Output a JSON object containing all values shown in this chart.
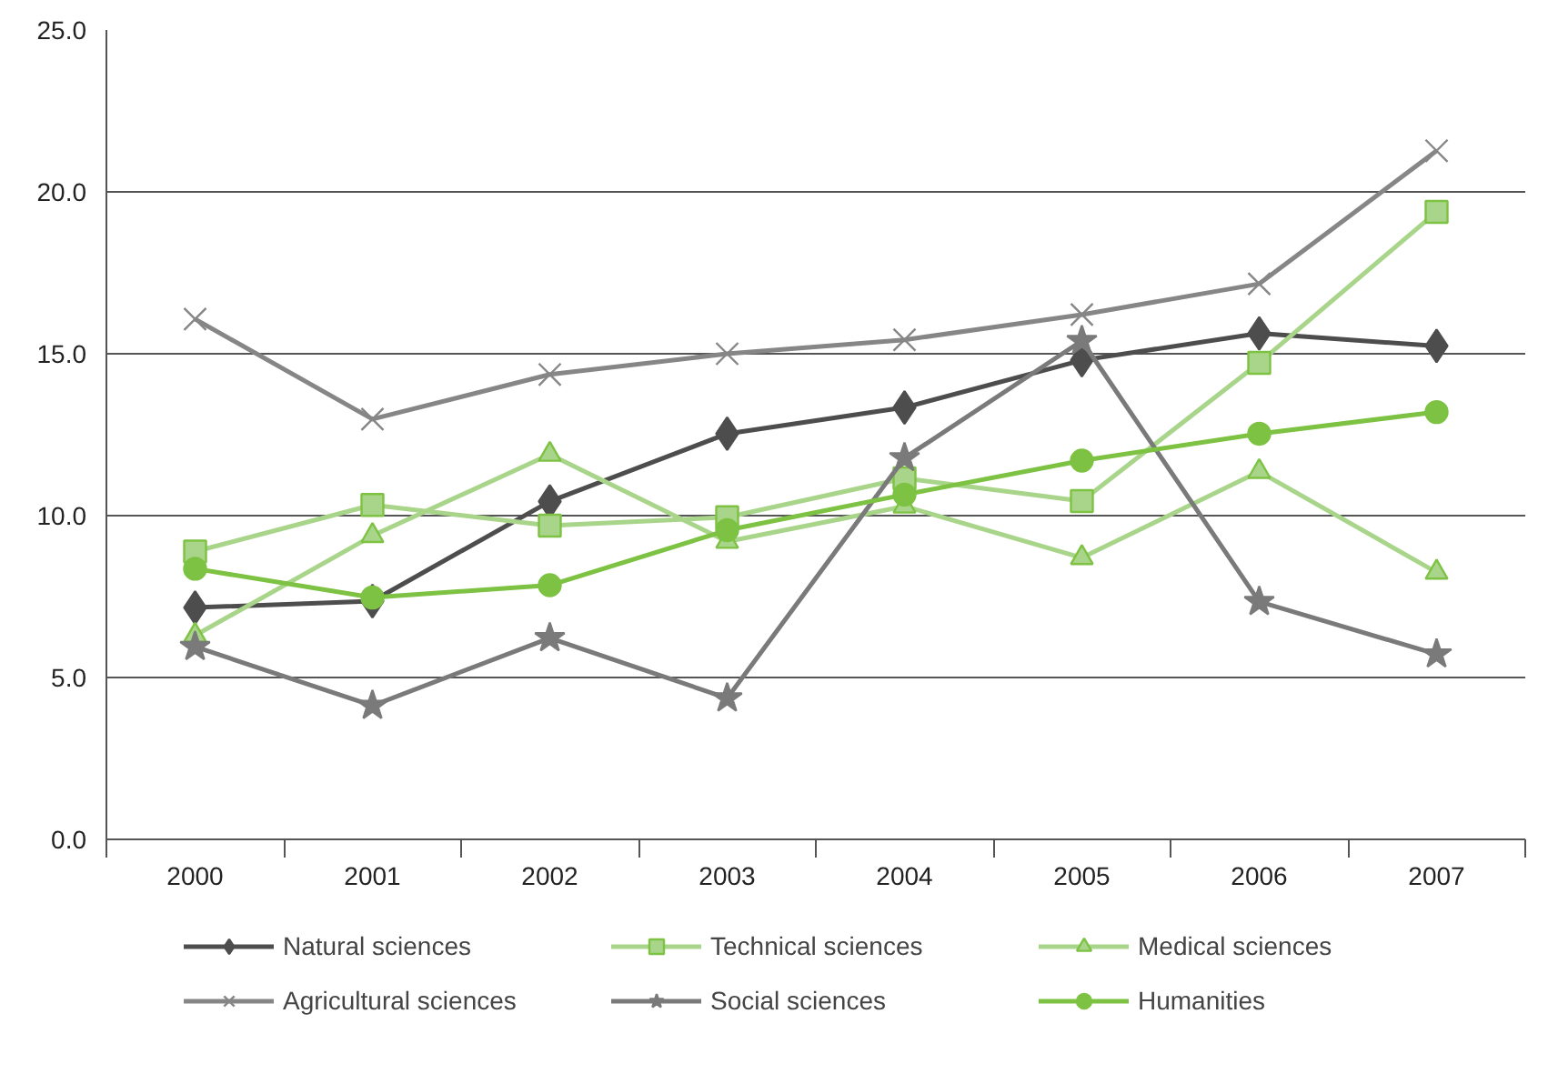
{
  "chart_data": {
    "type": "line",
    "categories": [
      "2000",
      "2001",
      "2002",
      "2003",
      "2004",
      "2005",
      "2006",
      "2007"
    ],
    "ylim": [
      0,
      25
    ],
    "yticks": [
      {
        "value": 0,
        "label": "0.0"
      },
      {
        "value": 5,
        "label": "5.0"
      },
      {
        "value": 10,
        "label": "10.0"
      },
      {
        "value": 15,
        "label": "15.0"
      },
      {
        "value": 20,
        "label": "20.0"
      },
      {
        "value": 25,
        "label": "25.0"
      }
    ],
    "grid": "y",
    "legend": "bottom",
    "line_style": "solid",
    "series": [
      {
        "name": "Natural sciences",
        "color": "#4d4d4d",
        "marker": "diamond",
        "values": [
          7.16,
          7.36,
          10.44,
          12.53,
          13.34,
          14.8,
          15.63,
          15.24
        ]
      },
      {
        "name": "Technical sciences",
        "color": "#a9d58a",
        "marker": "square",
        "values": [
          8.89,
          10.33,
          9.69,
          9.95,
          11.15,
          10.45,
          14.72,
          19.38
        ]
      },
      {
        "name": "Medical sciences",
        "color": "#a9d58a",
        "marker": "triangle",
        "values": [
          6.3,
          9.38,
          11.89,
          9.2,
          10.29,
          8.7,
          11.36,
          8.25
        ]
      },
      {
        "name": "Agricultural sciences",
        "color": "#868686",
        "marker": "cross",
        "values": [
          16.07,
          12.98,
          14.36,
          15.0,
          15.43,
          16.21,
          17.16,
          21.27
        ]
      },
      {
        "name": "Social sciences",
        "color": "#7a7a7a",
        "marker": "star",
        "values": [
          5.95,
          4.13,
          6.22,
          4.36,
          11.78,
          15.4,
          7.34,
          5.72
        ]
      },
      {
        "name": "Humanities",
        "color": "#7dc242",
        "marker": "circle",
        "values": [
          8.36,
          7.47,
          7.85,
          9.55,
          10.65,
          11.7,
          12.53,
          13.2
        ]
      }
    ]
  }
}
